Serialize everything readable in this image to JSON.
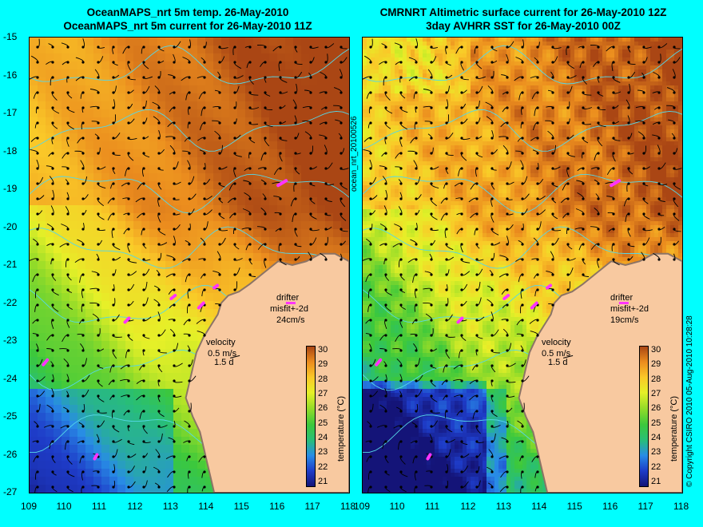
{
  "left_panel": {
    "title_line1": "OceanMAPS_nrt 5m temp. 26-May-2010",
    "title_line2": "OceanMAPS_nrt 5m current for 26-May-2010 11Z",
    "drifter_label": "drifter",
    "drifter_misfit": "misfit+-2d",
    "drifter_speed": "24cm/s",
    "velocity_label": "velocity",
    "velocity_scale": "0.5 m/s",
    "velocity_duration": "1.5 d"
  },
  "right_panel": {
    "title_line1": "CMRNRT Altimetric surface current for 26-May-2010 12Z",
    "title_line2": "3day AVHRR SST for 26-May-2010 00Z",
    "drifter_label": "drifter",
    "drifter_misfit": "misfit+-2d",
    "drifter_speed": "19cm/s",
    "velocity_label": "velocity",
    "velocity_scale": "0.5 m/s",
    "velocity_duration": "1.5 d"
  },
  "y_ticks": [
    "-15",
    "-16",
    "-17",
    "-18",
    "-19",
    "-20",
    "-21",
    "-22",
    "-23",
    "-24",
    "-25",
    "-26",
    "-27"
  ],
  "x_ticks": [
    "109",
    "110",
    "111",
    "112",
    "113",
    "114",
    "115",
    "116",
    "117",
    "118"
  ],
  "colorbar": {
    "ticks": [
      "30",
      "29",
      "28",
      "27",
      "26",
      "25",
      "24",
      "23",
      "22",
      "21"
    ],
    "label": "temperature (°C)"
  },
  "vertical_left_label": "ocean_nrt_20100526",
  "vertical_right_label": "© Copyright CSIRO 2010   05-Aug-2010 10:28:28",
  "colors": {
    "background": "#00ffff",
    "land": "#f8c9a0",
    "coast_dark": "#8c7466",
    "drifter": "#ff33ff",
    "contour": "#55d8e8"
  },
  "scale": {
    "lon_min": 109,
    "lon_max": 118,
    "lat_min": -27,
    "lat_max": -15
  }
}
